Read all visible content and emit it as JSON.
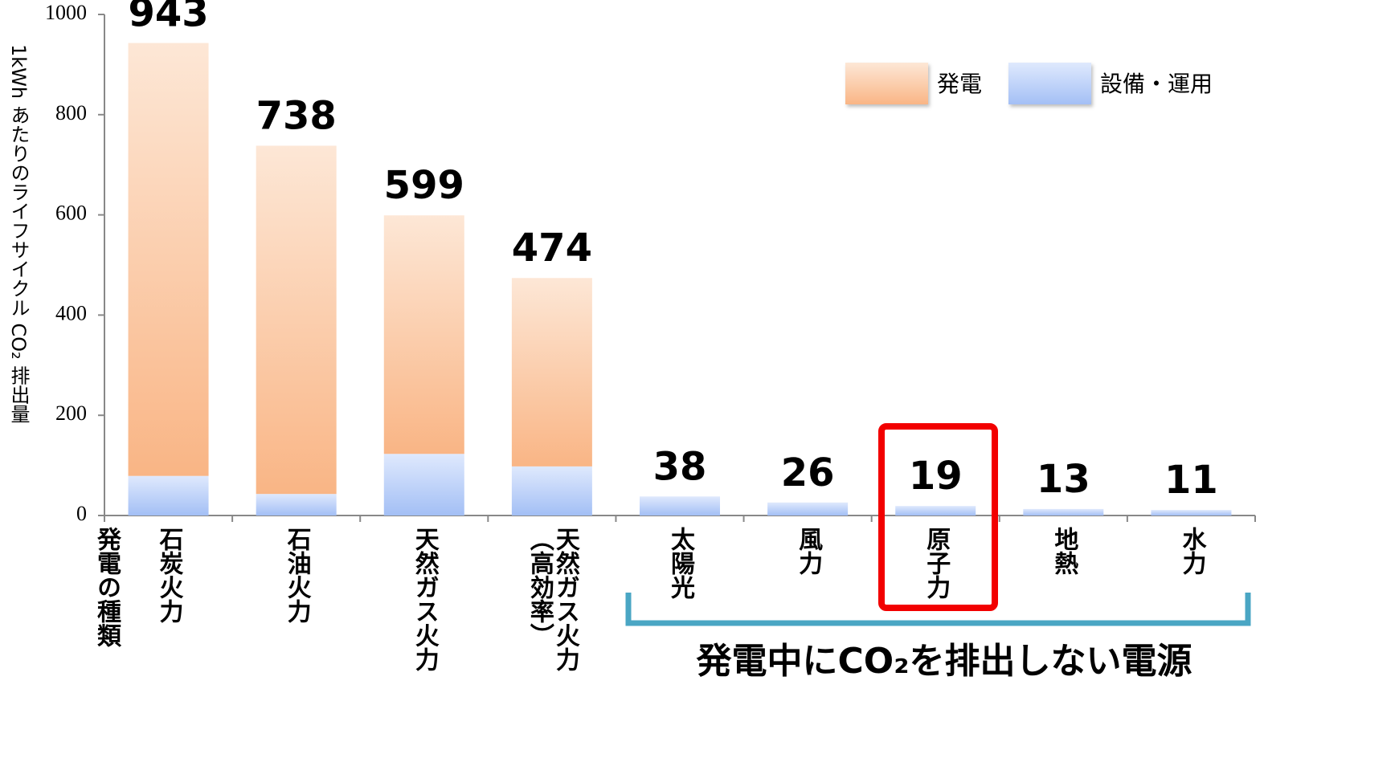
{
  "chart_data": {
    "type": "stacked_bar",
    "y_label": "1kWh あたりのライフサイクル CO₂ 排出量",
    "x_label": "発電の種類",
    "categories": [
      "石炭火力",
      "石油火力",
      "天然ガス火力",
      "天然ガス火力（高効率）",
      "太陽光",
      "風力",
      "原子力",
      "地熱",
      "水力"
    ],
    "series": [
      {
        "name": "発電",
        "color": "#f9b585",
        "values": [
          864,
          695,
          476,
          376,
          0,
          0,
          0,
          0,
          0
        ]
      },
      {
        "name": "設備・運用",
        "color": "#a3bff5",
        "values": [
          79,
          43,
          123,
          98,
          38,
          26,
          19,
          13,
          11
        ]
      }
    ],
    "totals": [
      943,
      738,
      599,
      474,
      38,
      26,
      19,
      13,
      11
    ],
    "ylim": [
      0,
      1000
    ],
    "yticks": [
      0,
      200,
      400,
      600,
      800,
      1000
    ],
    "annotation": "発電中にCO₂を排出しない電源"
  }
}
